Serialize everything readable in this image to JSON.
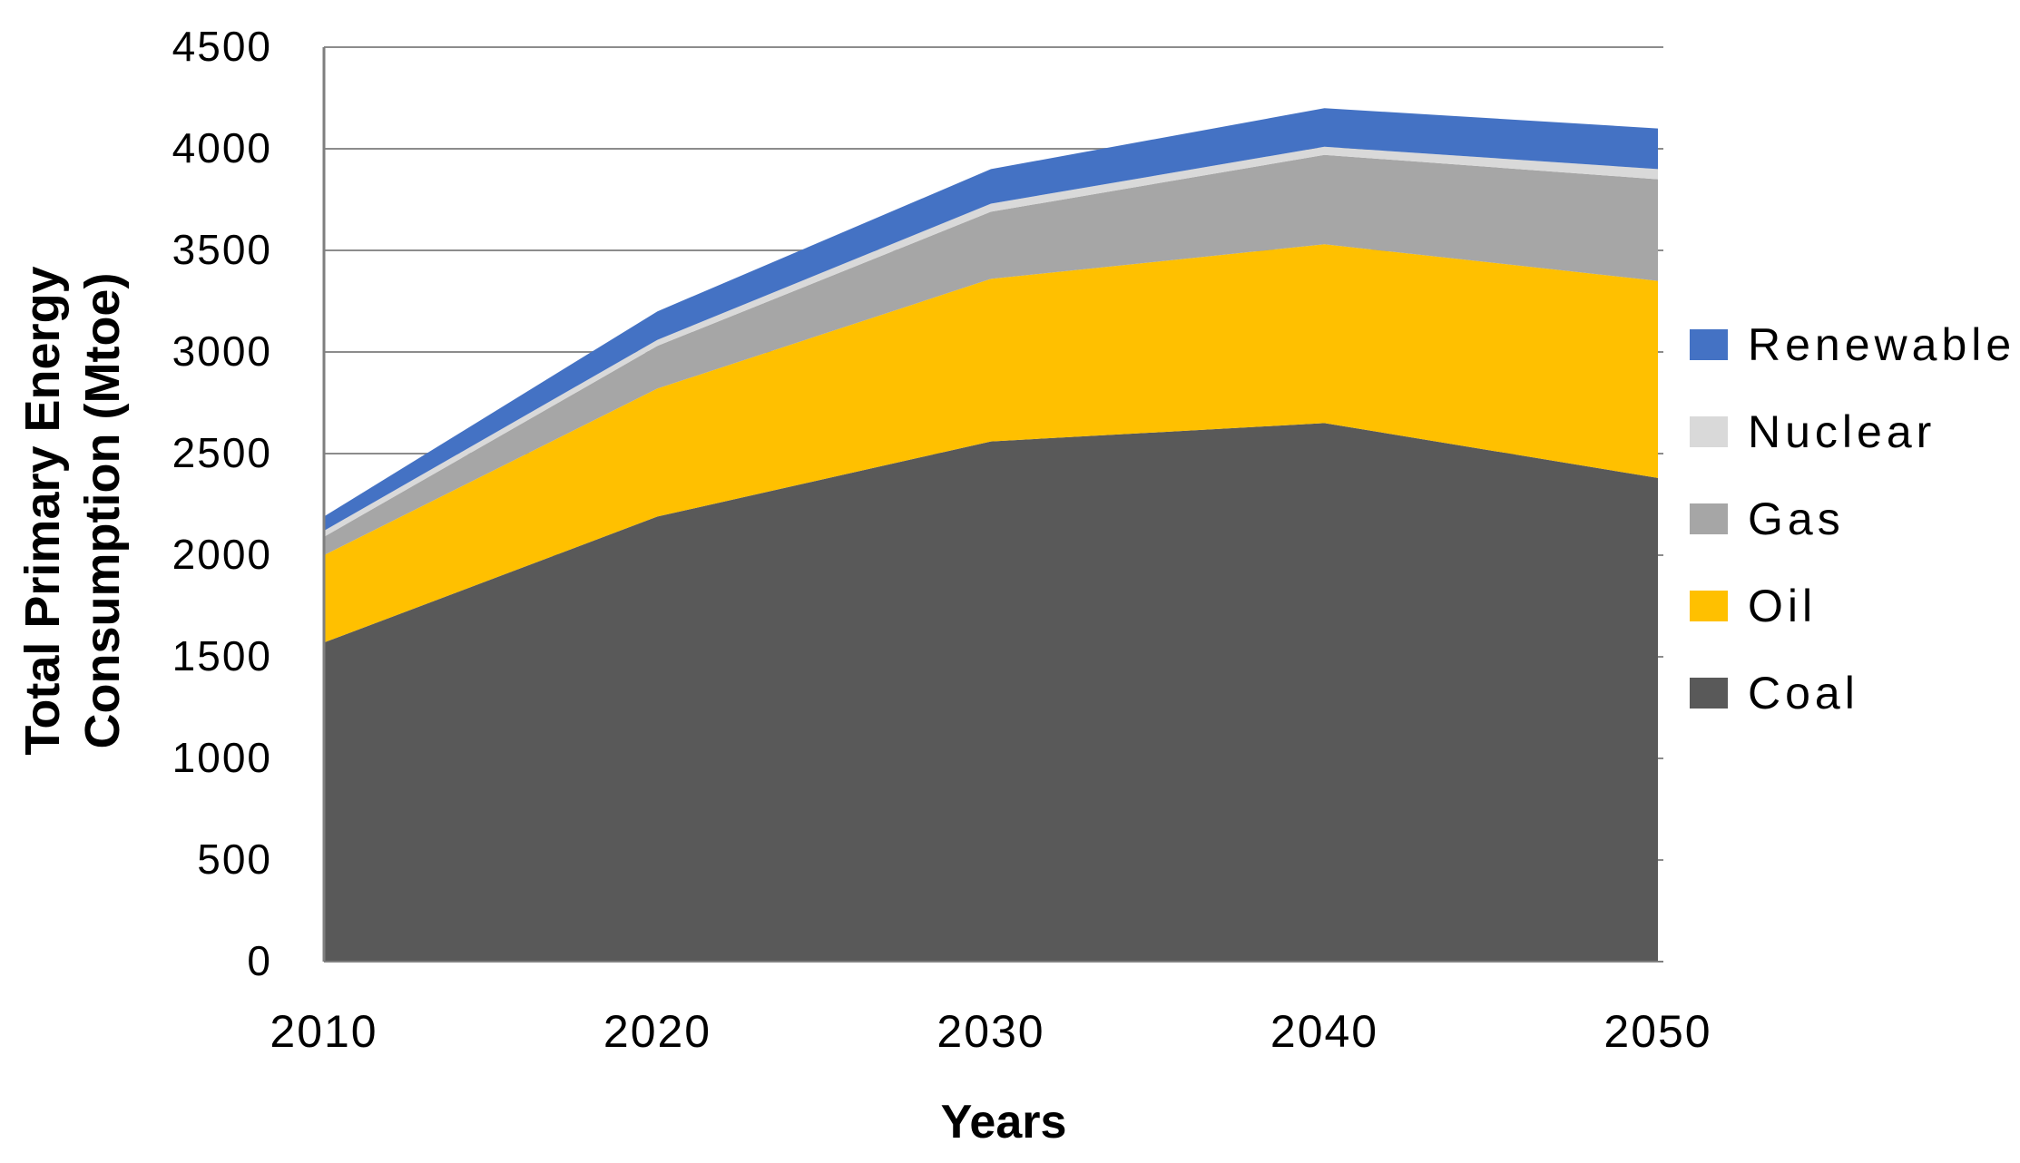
{
  "chart_data": {
    "type": "area",
    "stacked": true,
    "title": "",
    "xlabel": "Years",
    "ylabel_lines": [
      "Total Primary Energy",
      "Consumption (Mtoe)"
    ],
    "x": [
      2010,
      2020,
      2030,
      2040,
      2050
    ],
    "x_tick_labels": [
      "2010",
      "2020",
      "2030",
      "2040",
      "2050"
    ],
    "series": [
      {
        "name": "Coal",
        "color": "#595959",
        "values": [
          1570,
          2190,
          2560,
          2650,
          2380
        ]
      },
      {
        "name": "Oil",
        "color": "#FFC000",
        "values": [
          430,
          630,
          800,
          880,
          970
        ]
      },
      {
        "name": "Gas",
        "color": "#A6A6A6",
        "values": [
          90,
          210,
          330,
          440,
          500
        ]
      },
      {
        "name": "Nuclear",
        "color": "#D9D9D9",
        "values": [
          30,
          30,
          40,
          40,
          50
        ]
      },
      {
        "name": "Renewable",
        "color": "#4472C4",
        "values": [
          70,
          140,
          170,
          190,
          200
        ]
      }
    ],
    "stacked_totals": [
      2190,
      3200,
      3900,
      4200,
      4100
    ],
    "ylim": [
      0,
      4500
    ],
    "yticks": [
      0,
      500,
      1000,
      1500,
      2000,
      2500,
      3000,
      3500,
      4000,
      4500
    ],
    "legend": [
      {
        "label": "Renewable",
        "color": "#4472C4"
      },
      {
        "label": "Nuclear",
        "color": "#D9D9D9"
      },
      {
        "label": "Gas",
        "color": "#A6A6A6"
      },
      {
        "label": "Oil",
        "color": "#FFC000"
      },
      {
        "label": "Coal",
        "color": "#595959"
      }
    ],
    "legend_position": "right",
    "grid": "horizontal",
    "grid_color": "#8C8C8C",
    "axis_color": "#7F7F7F",
    "text_color": "#000000"
  }
}
